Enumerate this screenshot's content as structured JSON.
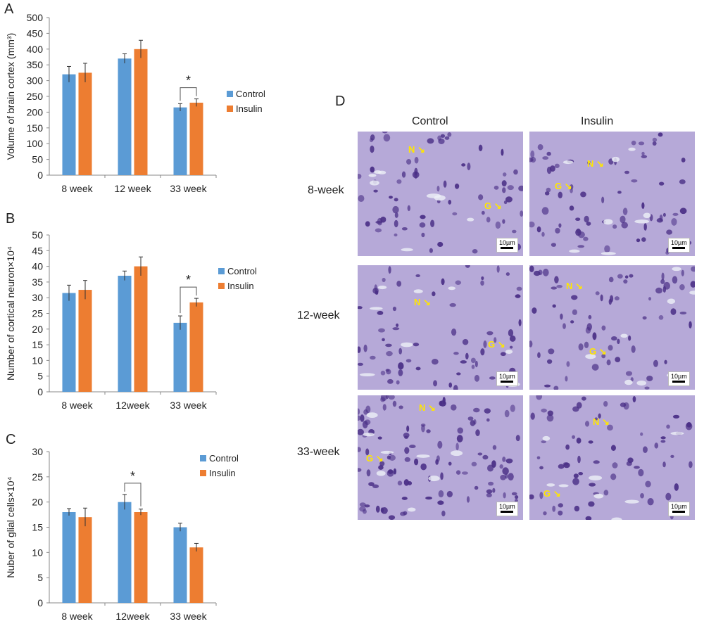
{
  "chart_data": [
    {
      "type": "bar",
      "panel": "A",
      "categories": [
        "8 week",
        "12 week",
        "33 week"
      ],
      "ylabel": "Volume of brain cortex (mm³)",
      "ylim": [
        0,
        500
      ],
      "yticks": [
        0,
        50,
        100,
        150,
        200,
        250,
        300,
        350,
        400,
        450,
        500
      ],
      "series": [
        {
          "name": "Control",
          "color": "#5b9bd5",
          "values": [
            320,
            370,
            215
          ],
          "errors": [
            25,
            15,
            12
          ]
        },
        {
          "name": "Insulin",
          "color": "#ed7d31",
          "values": [
            325,
            400,
            230
          ],
          "errors": [
            30,
            28,
            12
          ]
        }
      ],
      "significance": [
        {
          "category": "33 week",
          "label": "*"
        }
      ],
      "legend": "right"
    },
    {
      "type": "bar",
      "panel": "B",
      "categories": [
        "8 week",
        "12week",
        "33 week"
      ],
      "ylabel": "Number of cortical neuron×10⁴",
      "ylim": [
        0,
        50
      ],
      "yticks": [
        0,
        5,
        10,
        15,
        20,
        25,
        30,
        35,
        40,
        45,
        50
      ],
      "series": [
        {
          "name": "Control",
          "color": "#5b9bd5",
          "values": [
            31.5,
            37,
            22
          ],
          "errors": [
            2.5,
            1.5,
            2.2
          ]
        },
        {
          "name": "Insulin",
          "color": "#ed7d31",
          "values": [
            32.5,
            40,
            28.5
          ],
          "errors": [
            3,
            3,
            1.3
          ]
        }
      ],
      "significance": [
        {
          "category": "33 week",
          "label": "*"
        }
      ],
      "legend": "right"
    },
    {
      "type": "bar",
      "panel": "C",
      "categories": [
        "8 week",
        "12week",
        "33 week"
      ],
      "ylabel": "Nuber of glial cells×10⁴",
      "ylim": [
        0,
        30
      ],
      "yticks": [
        0,
        5,
        10,
        15,
        20,
        25,
        30
      ],
      "series": [
        {
          "name": "Control",
          "color": "#5b9bd5",
          "values": [
            18,
            20,
            15
          ],
          "errors": [
            0.7,
            1.5,
            0.8
          ]
        },
        {
          "name": "Insulin",
          "color": "#ed7d31",
          "values": [
            17,
            18,
            11
          ],
          "errors": [
            1.8,
            0.6,
            0.8
          ]
        }
      ],
      "significance": [
        {
          "category": "12week",
          "label": "*"
        }
      ],
      "legend": "right"
    }
  ],
  "panels": {
    "a": "A",
    "b": "B",
    "c": "C",
    "d": "D"
  },
  "micrographs": {
    "columns": [
      "Control",
      "Insulin"
    ],
    "rows": [
      "8-week",
      "12-week",
      "33-week"
    ],
    "scale_label": "10µm",
    "markers": {
      "neuron": "N",
      "glia": "G"
    },
    "colors": {
      "marker": "#ffe600",
      "tissue": "#b6a9d8",
      "nucleus": "#4a2f86"
    }
  }
}
